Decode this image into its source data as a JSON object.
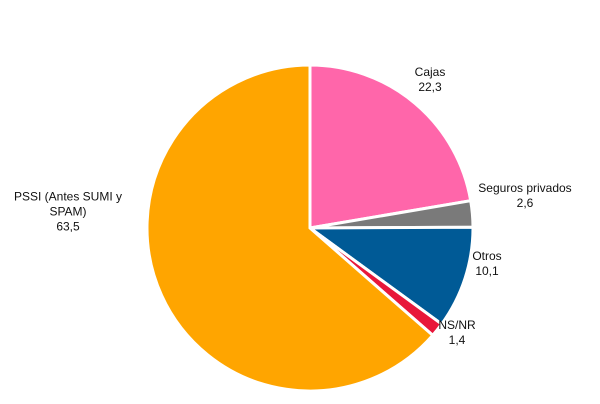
{
  "chart_data": {
    "type": "pie",
    "categories": [
      "Cajas",
      "Seguros privados",
      "Otros",
      "NS/NR",
      "PSSI (Antes SUMI y SPAM)"
    ],
    "values": [
      22.3,
      2.6,
      10.1,
      1.4,
      63.5
    ],
    "value_labels": [
      "22,3",
      "2,6",
      "10,1",
      "1,4",
      "63,5"
    ],
    "colors": [
      "#ff66aa",
      "#7a7a7a",
      "#005a96",
      "#e8173a",
      "#ffa500"
    ]
  }
}
